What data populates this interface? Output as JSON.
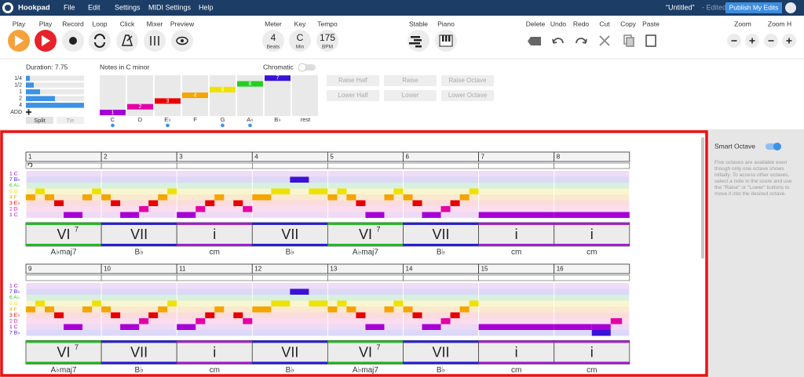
{
  "menu": {
    "brand": "Hookpad",
    "items": [
      "File",
      "Edit",
      "Settings",
      "MIDI Settings",
      "Help"
    ],
    "doc_title": "“Untitled”",
    "doc_status": "- Edited",
    "publish": "Publish My Edits"
  },
  "toolbar": {
    "labels": [
      "Play",
      "Play",
      "Record",
      "Loop",
      "Click",
      "Mixer",
      "Preview",
      "Meter",
      "Key",
      "Tempo",
      "Stable",
      "Piano",
      "Delete",
      "Undo",
      "Redo",
      "Cut",
      "Copy",
      "Paste",
      "Zoom",
      "Zoom H"
    ],
    "meter": {
      "value": 4,
      "unit": "Beats"
    },
    "key": {
      "value": "C",
      "unit": "Min"
    },
    "tempo": {
      "value": 175,
      "unit": "BPM"
    }
  },
  "duration": {
    "title": "Duration: 7.75",
    "rows": [
      "1/4",
      "1/2",
      "1",
      "2",
      "4",
      "ADD"
    ],
    "buttons": [
      "Split",
      "Tie"
    ]
  },
  "notes_panel": {
    "title": "Notes in C minor",
    "chromatic": "Chromatic",
    "notes": [
      {
        "degree": 1,
        "name": "C"
      },
      {
        "degree": 2,
        "name": "D"
      },
      {
        "degree": 3,
        "name": "E♭"
      },
      {
        "degree": 4,
        "name": "F"
      },
      {
        "degree": 5,
        "name": "G"
      },
      {
        "degree": 6,
        "name": "A♭"
      },
      {
        "degree": 7,
        "name": "B♭"
      }
    ],
    "rest": "rest"
  },
  "edit_buttons": [
    "Raise Half",
    "Raise",
    "Raise Octave",
    "Lower Half",
    "Lower",
    "Lower Octave"
  ],
  "sidebar": {
    "title": "Smart Octave",
    "help": "Five octaves are available even though only one octave shows initially. To access other octaves, select a note in the score and use the \"Raise\" or \"Lower\" buttons to move it into the desired octave."
  },
  "score": {
    "systems": [
      {
        "measures": [
          1,
          2,
          3,
          4,
          5,
          6,
          7,
          8
        ],
        "rows": [
          "1 C",
          "7 B♭",
          "6 A♭",
          "5 G",
          "4 F",
          "3 E♭",
          "2 D",
          "1 C"
        ],
        "chords": [
          {
            "roman": "VI",
            "sup": "7",
            "name": "A♭maj7",
            "color": "#22b822"
          },
          {
            "roman": "VII",
            "name": "B♭",
            "color": "#2a1fd6"
          },
          {
            "roman": "i",
            "name": "cm",
            "color": "#a21fd0"
          },
          {
            "roman": "VII",
            "name": "B♭",
            "color": "#2a1fd6"
          },
          {
            "roman": "VI",
            "sup": "7",
            "name": "A♭maj7",
            "color": "#22b822"
          },
          {
            "roman": "VII",
            "name": "B♭",
            "color": "#2a1fd6"
          },
          {
            "roman": "i",
            "name": "cm",
            "color": "#a21fd0"
          },
          {
            "roman": "i",
            "name": "cm",
            "color": "#a21fd0"
          }
        ]
      },
      {
        "measures": [
          9,
          10,
          11,
          12,
          13,
          14,
          15,
          16
        ],
        "rows": [
          "1 C",
          "7 B♭",
          "6 A♭",
          "5 G",
          "4 F",
          "3 E♭",
          "2 D",
          "1 C",
          "7 B♭"
        ],
        "chords": [
          {
            "roman": "VI",
            "sup": "7",
            "name": "A♭maj7",
            "color": "#22b822"
          },
          {
            "roman": "VII",
            "name": "B♭",
            "color": "#2a1fd6"
          },
          {
            "roman": "i",
            "name": "cm",
            "color": "#a21fd0"
          },
          {
            "roman": "VII",
            "name": "B♭",
            "color": "#2a1fd6"
          },
          {
            "roman": "VI",
            "sup": "7",
            "name": "A♭maj7",
            "color": "#22b822"
          },
          {
            "roman": "VII",
            "name": "B♭",
            "color": "#2a1fd6"
          },
          {
            "roman": "i",
            "name": "cm",
            "color": "#a21fd0"
          },
          {
            "roman": "i",
            "name": "cm",
            "color": "#a21fd0"
          }
        ]
      }
    ]
  }
}
